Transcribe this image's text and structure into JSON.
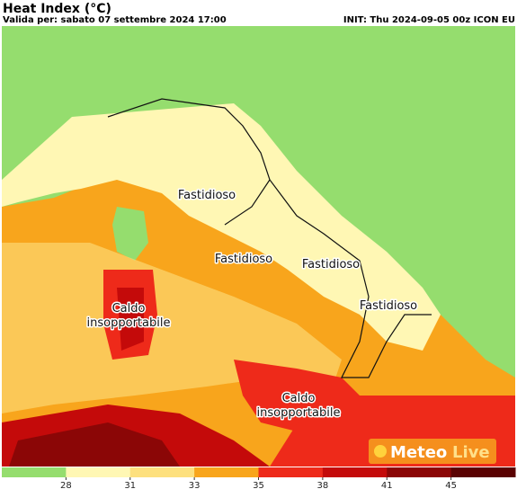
{
  "header": {
    "title": "Heat Index (°C)",
    "valid": "Valida per: sabato 07 settembre 2024 17:00",
    "init": "INIT: Thu 2024-09-05 00z ICON EU"
  },
  "map_labels": [
    "Fastidioso",
    "Fastidioso",
    "Fastidioso",
    "Fastidioso",
    [
      "Caldo",
      "insopportabile"
    ],
    [
      "Caldo",
      "insopportabile"
    ]
  ],
  "logo": [
    "Meteo",
    "Live"
  ],
  "colorbar": {
    "colors": [
      "#95dd6e",
      "#fff7b4",
      "#fde07e",
      "#f8a51c",
      "#ee2a1a",
      "#c40a0a",
      "#8b0606",
      "#5a0202"
    ],
    "ticks": [
      28,
      31,
      33,
      35,
      38,
      41,
      45
    ]
  }
}
